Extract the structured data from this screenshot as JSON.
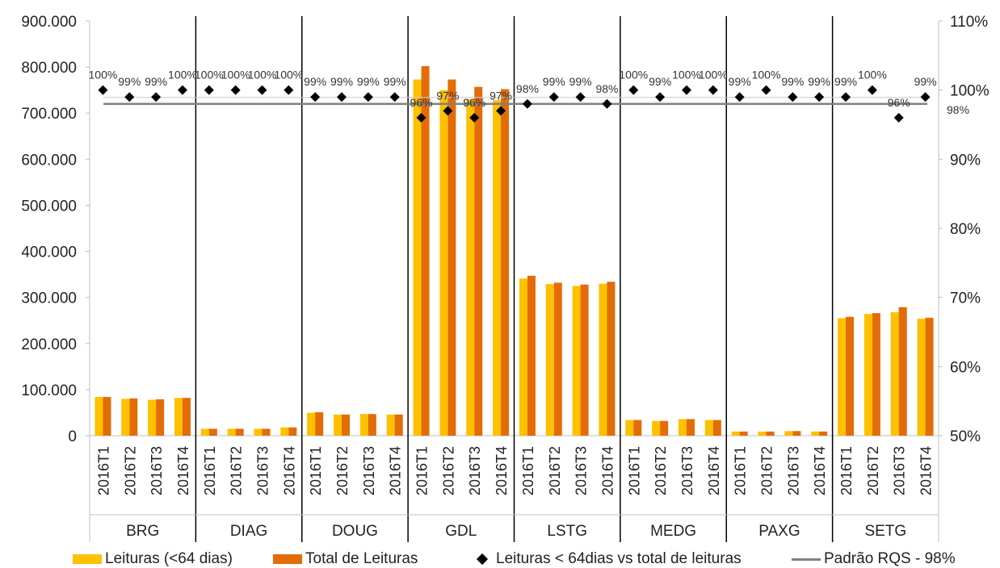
{
  "chart_data": {
    "type": "bar",
    "groups": [
      "BRG",
      "DIAG",
      "DOUG",
      "GDL",
      "LSTG",
      "MEDG",
      "PAXG",
      "SETG"
    ],
    "periods": [
      "2016T1",
      "2016T2",
      "2016T3",
      "2016T4"
    ],
    "series": [
      {
        "name": "Leituras (<64 dias)",
        "axis": "left",
        "color": "#FFC000",
        "values": [
          [
            84000,
            80000,
            78000,
            82000
          ],
          [
            15000,
            15000,
            15000,
            18000
          ],
          [
            50000,
            46000,
            47000,
            46000
          ],
          [
            773000,
            750000,
            730000,
            728000
          ],
          [
            341000,
            329000,
            325000,
            330000
          ],
          [
            34000,
            32000,
            36000,
            34000
          ],
          [
            9000,
            9000,
            10000,
            9000
          ],
          [
            255000,
            264000,
            268000,
            254000
          ]
        ]
      },
      {
        "name": "Total de Leituras",
        "axis": "left",
        "color": "#E36C09",
        "values": [
          [
            84000,
            81000,
            79000,
            82000
          ],
          [
            15000,
            15000,
            15000,
            18000
          ],
          [
            51000,
            46000,
            47000,
            46000
          ],
          [
            802000,
            773000,
            757000,
            752000
          ],
          [
            347000,
            332000,
            328000,
            334000
          ],
          [
            34000,
            32000,
            36000,
            34000
          ],
          [
            9000,
            9000,
            10000,
            9000
          ],
          [
            258000,
            266000,
            279000,
            256000
          ]
        ]
      },
      {
        "name": "Leituras < 64dias vs total de leituras",
        "axis": "right",
        "marker": "diamond",
        "values": [
          [
            100,
            99,
            99,
            100
          ],
          [
            100,
            100,
            100,
            100
          ],
          [
            99,
            99,
            99,
            99
          ],
          [
            96,
            97,
            96,
            97
          ],
          [
            98,
            99,
            99,
            98
          ],
          [
            100,
            99,
            100,
            100
          ],
          [
            99,
            100,
            99,
            99
          ],
          [
            99,
            100,
            96,
            99
          ]
        ],
        "labels": [
          [
            "100%",
            "99%",
            "99%",
            "100%"
          ],
          [
            "100%",
            "100%",
            "100%",
            "100%"
          ],
          [
            "99%",
            "99%",
            "99%",
            "99%"
          ],
          [
            "96%",
            "97%",
            "96%",
            "97%"
          ],
          [
            "98%",
            "99%",
            "99%",
            "98%"
          ],
          [
            "100%",
            "99%",
            "100%",
            "100%"
          ],
          [
            "99%",
            "100%",
            "99%",
            "99%"
          ],
          [
            "99%",
            "100%",
            "96%",
            "99%"
          ]
        ]
      },
      {
        "name": "Padrão RQS - 98%",
        "axis": "right",
        "type": "line",
        "value": 98,
        "label": "98%"
      }
    ],
    "y_left": {
      "ylim": [
        0,
        900000
      ],
      "ticks": [
        "0",
        "100.000",
        "200.000",
        "300.000",
        "400.000",
        "500.000",
        "600.000",
        "700.000",
        "800.000",
        "900.000"
      ]
    },
    "y_right": {
      "ylim": [
        50,
        110
      ],
      "ticks": [
        "50%",
        "60%",
        "70%",
        "80%",
        "90%",
        "100%",
        "110%"
      ]
    },
    "colors": {
      "leituras": "#FFC000",
      "total": "#E36C09",
      "marker": "#000000",
      "standard_line": "#808080",
      "separator": "#000000",
      "axis": "#bfbfbf"
    },
    "grid": false,
    "legend_position": "bottom"
  }
}
